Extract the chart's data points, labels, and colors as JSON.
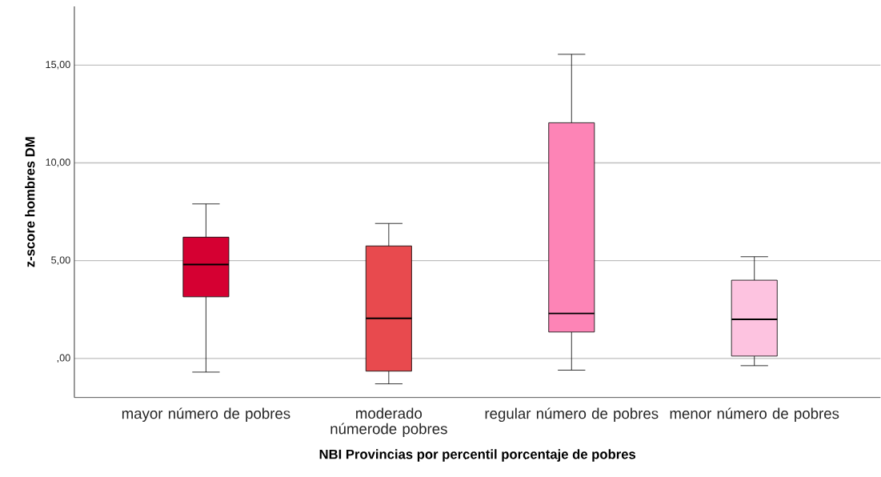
{
  "chart_data": {
    "type": "box",
    "xlabel": "NBI Provincias por percentil porcentaje de pobres",
    "ylabel": "z-score hombres DM",
    "categories": [
      "mayor número de pobres",
      "moderado númerode pobres",
      "regular número de pobres",
      "menor número de pobres"
    ],
    "colors": [
      "#d50032",
      "#e84a4e",
      "#fd84b6",
      "#fdc3e0"
    ],
    "boxes": [
      {
        "low": -0.7,
        "q1": 3.15,
        "median": 4.8,
        "q3": 6.2,
        "high": 7.9
      },
      {
        "low": -1.3,
        "q1": -0.65,
        "median": 2.05,
        "q3": 5.75,
        "high": 6.9
      },
      {
        "low": -0.6,
        "q1": 1.35,
        "median": 2.3,
        "q3": 12.05,
        "high": 15.55
      },
      {
        "low": -0.37,
        "q1": 0.12,
        "median": 2.0,
        "q3": 4.0,
        "high": 5.2
      }
    ],
    "ylim": [
      -2,
      18
    ],
    "yticks": [
      {
        "value": 0,
        "label": ",00"
      },
      {
        "value": 5,
        "label": "5,00"
      },
      {
        "value": 10,
        "label": "10,00"
      },
      {
        "value": 15,
        "label": "15,00"
      }
    ],
    "grid": "y"
  }
}
